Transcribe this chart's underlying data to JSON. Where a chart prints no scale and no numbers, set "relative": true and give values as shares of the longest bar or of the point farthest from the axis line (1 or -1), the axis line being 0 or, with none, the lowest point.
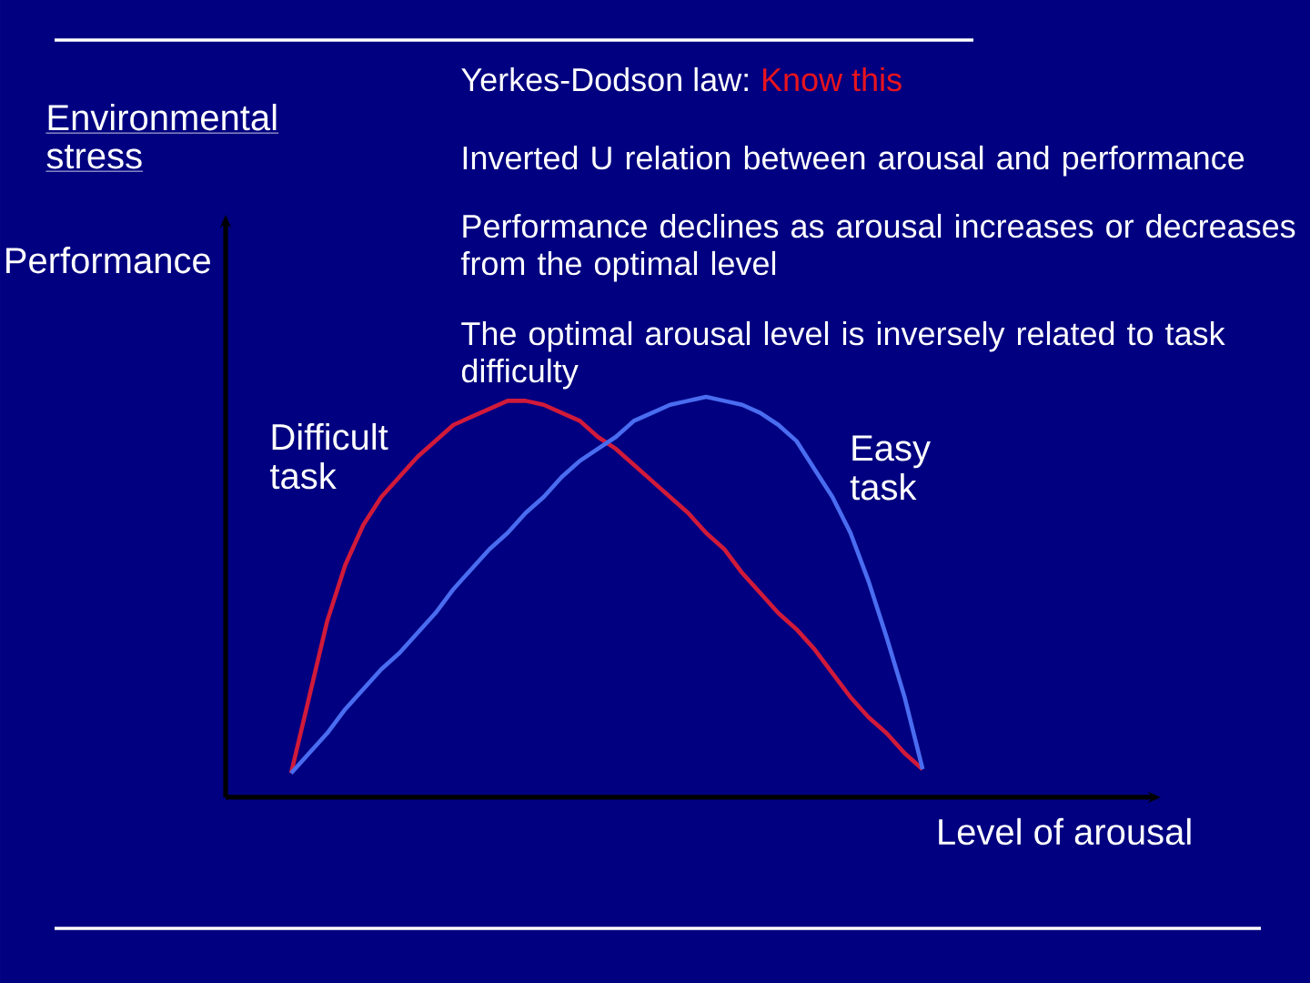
{
  "chart_data": {
    "type": "line",
    "title": "Yerkes-Dodson law:",
    "xlabel": "Level of arousal",
    "ylabel": "Performance",
    "relative": true,
    "categories": [
      null,
      null,
      null,
      null,
      null,
      null,
      null,
      null,
      null,
      null,
      null,
      null,
      null,
      null,
      null,
      null,
      null,
      null,
      null,
      null,
      null,
      null,
      null,
      null,
      null,
      null,
      null,
      null,
      null,
      null,
      null,
      null,
      null,
      null,
      null,
      null
    ],
    "series": [
      {
        "name": "Difficult task",
        "color": "#d11a3a",
        "values": [
          0.06,
          0.25,
          0.44,
          0.58,
          0.68,
          0.75,
          0.8,
          0.85,
          0.89,
          0.93,
          0.95,
          0.97,
          0.99,
          0.99,
          0.98,
          0.96,
          0.94,
          0.9,
          0.87,
          0.83,
          0.79,
          0.75,
          0.71,
          0.66,
          0.62,
          0.56,
          0.51,
          0.46,
          0.42,
          0.37,
          0.31,
          0.25,
          0.2,
          0.16,
          0.11,
          0.07
        ]
      },
      {
        "name": "Easy task",
        "color": "#4a6cf0",
        "values": [
          0.06,
          0.11,
          0.16,
          0.22,
          0.27,
          0.32,
          0.36,
          0.41,
          0.46,
          0.52,
          0.57,
          0.62,
          0.66,
          0.71,
          0.75,
          0.8,
          0.84,
          0.87,
          0.9,
          0.94,
          0.96,
          0.98,
          0.99,
          1,
          0.99,
          0.98,
          0.96,
          0.93,
          0.89,
          0.82,
          0.75,
          0.66,
          0.54,
          0.4,
          0.25,
          0.07
        ]
      }
    ],
    "annotations": [
      "Know this",
      "Environmental stress",
      "Inverted U relation between arousal and performance",
      "Performance declines as arousal increases or decreases from the optimal level",
      "The optimal arousal level is inversely related to task difficulty"
    ]
  }
}
